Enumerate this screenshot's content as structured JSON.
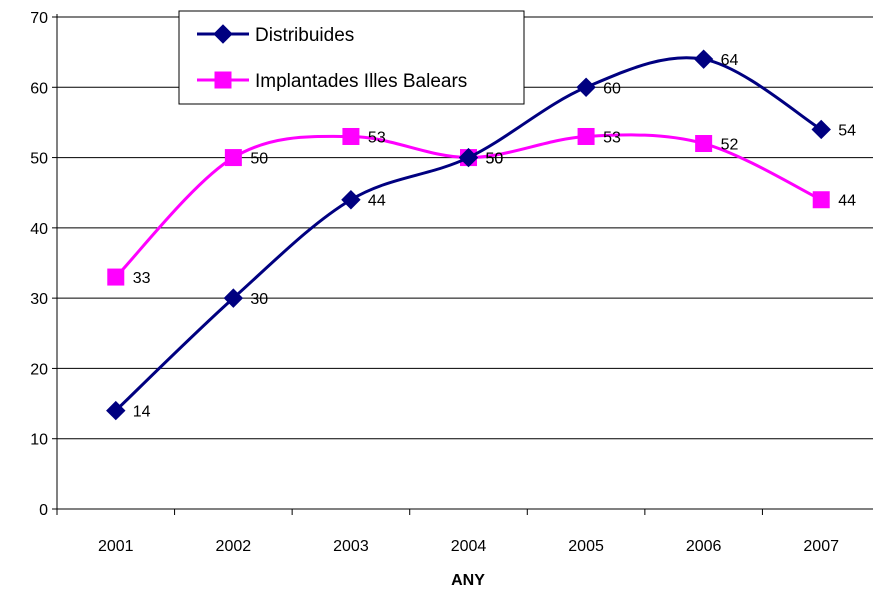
{
  "chart_data": {
    "type": "line",
    "title": "",
    "xlabel": "ANY",
    "ylabel": "",
    "x": [
      "2001",
      "2002",
      "2003",
      "2004",
      "2005",
      "2006",
      "2007"
    ],
    "ylim": [
      0,
      70
    ],
    "yticks": [
      0,
      10,
      20,
      30,
      40,
      50,
      60,
      70
    ],
    "grid": "horizontal",
    "legend_position": "top-left",
    "smooth": true,
    "series": [
      {
        "name": "Distribuides",
        "values": [
          14,
          30,
          44,
          50,
          60,
          64,
          54
        ],
        "color": "#000080",
        "marker": "diamond"
      },
      {
        "name": "Implantades Illes Balears",
        "values": [
          33,
          50,
          53,
          50,
          53,
          52,
          44
        ],
        "color": "#ff00ff",
        "marker": "square"
      }
    ]
  }
}
